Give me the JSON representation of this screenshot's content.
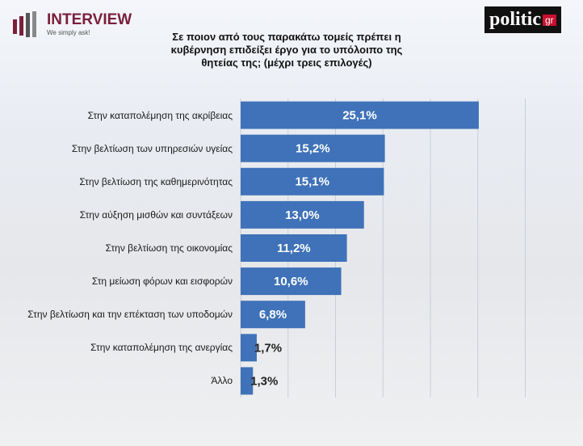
{
  "brand": {
    "name": "INTERVIEW",
    "tagline": "We simply ask!",
    "partner": "politic",
    "partner_suffix": "gr"
  },
  "chart_data": {
    "type": "bar",
    "orientation": "horizontal",
    "title": "Σε ποιον από τους παρακάτω τομείς πρέπει η κυβέρνηση επιδείξει έργο για το υπόλοιπο της θητείας της; (μέχρι τρεις επιλογές)",
    "categories": [
      "Στην καταπολέμηση της ακρίβειας",
      "Στην βελτίωση των υπηρεσιών υγείας",
      "Στην βελτίωση της καθημερινότητας",
      "Στην αύξηση μισθών και συντάξεων",
      "Στην βελτίωση της οικονομίας",
      "Στη μείωση φόρων και εισφορών",
      "Στην βελτίωση και την επέκταση των υποδομών",
      "Στην καταπολέμηση της ανεργίας",
      "Άλλο"
    ],
    "values": [
      25.1,
      15.2,
      15.1,
      13.0,
      11.2,
      10.6,
      6.8,
      1.7,
      1.3
    ],
    "value_labels": [
      "25,1%",
      "15,2%",
      "15,1%",
      "13,0%",
      "11,2%",
      "10,6%",
      "6,8%",
      "1,7%",
      "1,3%"
    ],
    "color": "#3f72b8",
    "xlim": [
      0,
      30
    ],
    "xticks": [
      0,
      5,
      10,
      15,
      20,
      25,
      30
    ],
    "grid": true
  }
}
